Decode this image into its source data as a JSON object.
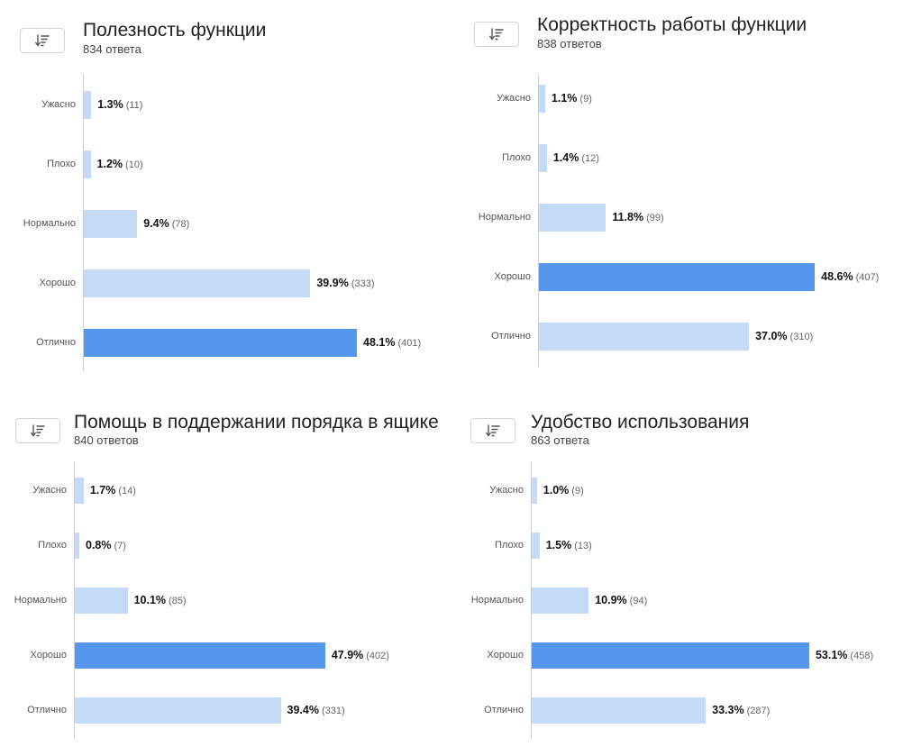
{
  "chart_data": [
    {
      "type": "bar",
      "orientation": "horizontal",
      "title": "Полезность функции",
      "subtitle": "834 ответа",
      "categories": [
        "Ужасно",
        "Плохо",
        "Нормально",
        "Хорошо",
        "Отлично"
      ],
      "values": [
        1.3,
        1.2,
        9.4,
        39.9,
        48.1
      ],
      "value_labels": [
        "1.3%",
        "1.2%",
        "9.4%",
        "39.9%",
        "48.1%"
      ],
      "counts": [
        "(11)",
        "(10)",
        "(78)",
        "(333)",
        "(401)"
      ],
      "highlight_index": 4,
      "grid": false
    },
    {
      "type": "bar",
      "orientation": "horizontal",
      "title": "Корректность работы функции",
      "subtitle": "838 ответов",
      "categories": [
        "Ужасно",
        "Плохо",
        "Нормально",
        "Хорошо",
        "Отлично"
      ],
      "values": [
        1.1,
        1.4,
        11.8,
        48.6,
        37.0
      ],
      "value_labels": [
        "1.1%",
        "1.4%",
        "11.8%",
        "48.6%",
        "37.0%"
      ],
      "counts": [
        "(9)",
        "(12)",
        "(99)",
        "(407)",
        "(310)"
      ],
      "highlight_index": 3,
      "grid": false
    },
    {
      "type": "bar",
      "orientation": "horizontal",
      "title": "Помощь в поддержании порядка в ящике",
      "subtitle": "840 ответов",
      "categories": [
        "Ужасно",
        "Плохо",
        "Нормально",
        "Хорошо",
        "Отлично"
      ],
      "values": [
        1.7,
        0.8,
        10.1,
        47.9,
        39.4
      ],
      "value_labels": [
        "1.7%",
        "0.8%",
        "10.1%",
        "47.9%",
        "39.4%"
      ],
      "counts": [
        "(14)",
        "(7)",
        "(85)",
        "(402)",
        "(331)"
      ],
      "highlight_index": 3,
      "grid": false
    },
    {
      "type": "bar",
      "orientation": "horizontal",
      "title": "Удобство использования",
      "subtitle": "863 ответа",
      "categories": [
        "Ужасно",
        "Плохо",
        "Нормально",
        "Хорошо",
        "Отлично"
      ],
      "values": [
        1.0,
        1.5,
        10.9,
        53.1,
        33.3
      ],
      "value_labels": [
        "1.0%",
        "1.5%",
        "10.9%",
        "53.1%",
        "33.3%"
      ],
      "counts": [
        "(9)",
        "(13)",
        "(94)",
        "(458)",
        "(287)"
      ],
      "highlight_index": 3,
      "grid": false
    }
  ],
  "colors": {
    "bar": "#c3dbf7",
    "bar_highlight": "#5596ee",
    "axis": "#d0d0d0",
    "button_border": "#d4d4d4",
    "button_icon": "#555555"
  },
  "icons": {
    "sort_button": "sort-descending-icon"
  }
}
